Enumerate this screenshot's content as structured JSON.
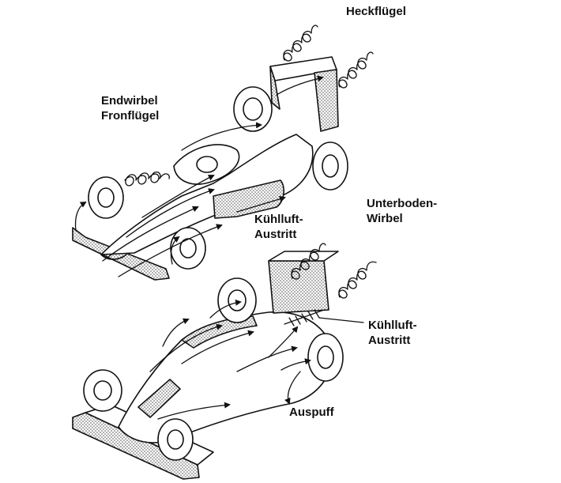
{
  "labels": {
    "heckfluegel": [
      "Heckflügel"
    ],
    "endwirbel_frontfluegel": [
      "Endwirbel",
      "Fronflügel"
    ],
    "kuehlluft_austritt_top": [
      "Kühlluft-",
      "Austritt"
    ],
    "unterboden_wirbel": [
      "Unterboden-",
      "Wirbel"
    ],
    "kuehlluft_austritt_bottom": [
      "Kühlluft-",
      "Austritt"
    ],
    "auspuff": [
      "Auspuff"
    ]
  },
  "colors": {
    "ink": "#111111",
    "stipple": "#555555",
    "background": "#ffffff"
  }
}
